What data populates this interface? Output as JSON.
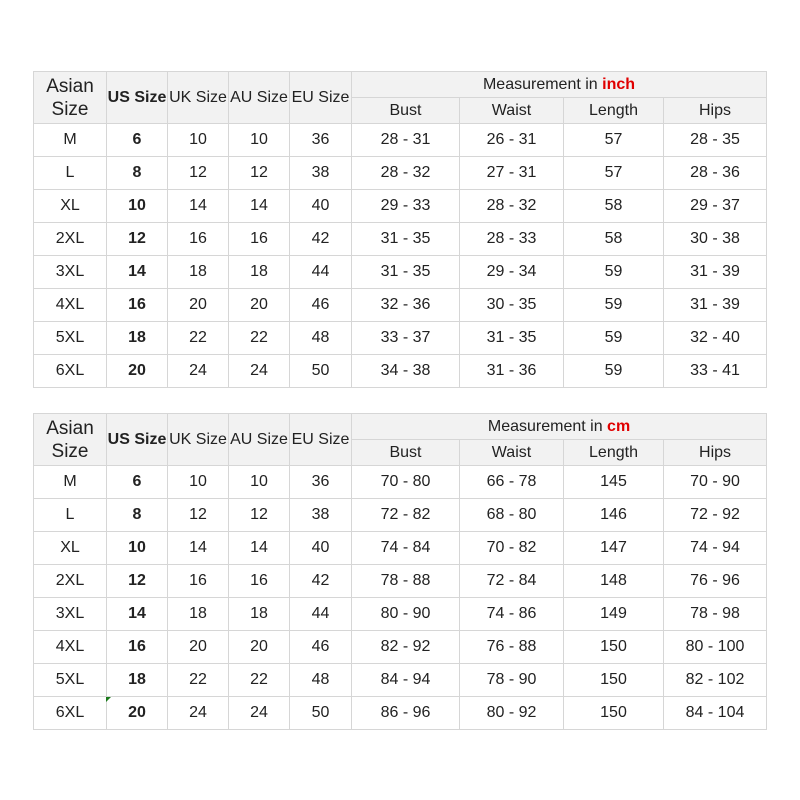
{
  "headers": {
    "asian": "Asian Size",
    "us": "US Size",
    "uk": "UK Size",
    "au": "AU Size",
    "eu": "EU Size",
    "measurement_prefix": "Measurement in ",
    "columns": [
      "Bust",
      "Waist",
      "Length",
      "Hips"
    ]
  },
  "accent_color": "#e00000",
  "tables": [
    {
      "unit": "inch",
      "rows": [
        [
          "M",
          "6",
          "10",
          "10",
          "36",
          "28  - 31",
          "26  - 31",
          "57",
          "28  - 35"
        ],
        [
          "L",
          "8",
          "12",
          "12",
          "38",
          "28  - 32",
          "27  - 31",
          "57",
          "28  - 36"
        ],
        [
          "XL",
          "10",
          "14",
          "14",
          "40",
          "29  - 33",
          "28  - 32",
          "58",
          "29  - 37"
        ],
        [
          "2XL",
          "12",
          "16",
          "16",
          "42",
          "31  - 35",
          "28  - 33",
          "58",
          "30  - 38"
        ],
        [
          "3XL",
          "14",
          "18",
          "18",
          "44",
          "31  - 35",
          "29  - 34",
          "59",
          "31  - 39"
        ],
        [
          "4XL",
          "16",
          "20",
          "20",
          "46",
          "32  - 36",
          "30  - 35",
          "59",
          "31  - 39"
        ],
        [
          "5XL",
          "18",
          "22",
          "22",
          "48",
          "33  - 37",
          "31  - 35",
          "59",
          "32  - 40"
        ],
        [
          "6XL",
          "20",
          "24",
          "24",
          "50",
          "34  - 38",
          "31  - 36",
          "59",
          "33  - 41"
        ]
      ]
    },
    {
      "unit": "cm",
      "rows": [
        [
          "M",
          "6",
          "10",
          "10",
          "36",
          "70  - 80",
          "66  - 78",
          "145",
          "70  - 90"
        ],
        [
          "L",
          "8",
          "12",
          "12",
          "38",
          "72  - 82",
          "68  - 80",
          "146",
          "72  - 92"
        ],
        [
          "XL",
          "10",
          "14",
          "14",
          "40",
          "74  - 84",
          "70  - 82",
          "147",
          "74  - 94"
        ],
        [
          "2XL",
          "12",
          "16",
          "16",
          "42",
          "78  - 88",
          "72  - 84",
          "148",
          "76  - 96"
        ],
        [
          "3XL",
          "14",
          "18",
          "18",
          "44",
          "80  - 90",
          "74  - 86",
          "149",
          "78  - 98"
        ],
        [
          "4XL",
          "16",
          "20",
          "20",
          "46",
          "82  - 92",
          "76  - 88",
          "150",
          "80  - 100"
        ],
        [
          "5XL",
          "18",
          "22",
          "22",
          "48",
          "84  - 94",
          "78  - 90",
          "150",
          "82  - 102"
        ],
        [
          "6XL",
          "20",
          "24",
          "24",
          "50",
          "86  - 96",
          "80  - 92",
          "150",
          "84  - 104"
        ]
      ]
    }
  ]
}
